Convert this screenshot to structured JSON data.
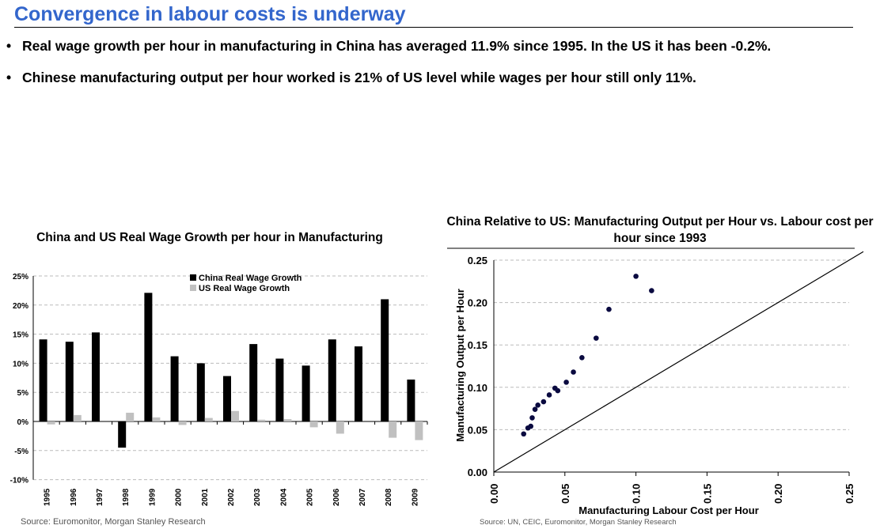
{
  "title": "Convergence in labour costs is underway",
  "bullets": [
    "Real wage growth per hour in manufacturing in China has averaged 11.9% since 1995. In the US it has been -0.2%.",
    "Chinese manufacturing output per hour worked is 21% of US level while wages per hour still only 11%."
  ],
  "colors": {
    "title": "#3366cc",
    "china": "#000000",
    "us": "#c0c0c0",
    "dots": "#0a0a40"
  },
  "chart_data": [
    {
      "type": "bar",
      "title": "China and US Real Wage Growth per hour in Manufacturing",
      "categories": [
        "1995",
        "1996",
        "1997",
        "1998",
        "1999",
        "2000",
        "2001",
        "2002",
        "2003",
        "2004",
        "2005",
        "2006",
        "2007",
        "2008",
        "2009"
      ],
      "series": [
        {
          "name": "China Real Wage Growth",
          "values": [
            14.1,
            13.7,
            15.3,
            -4.5,
            22.1,
            11.2,
            10.0,
            7.8,
            13.3,
            10.8,
            9.6,
            14.1,
            12.9,
            21.0,
            7.2
          ]
        },
        {
          "name": "US Real Wage Growth",
          "values": [
            -0.5,
            1.1,
            0,
            1.5,
            0.7,
            -0.6,
            0.6,
            1.8,
            0.3,
            0.4,
            -1.0,
            -2.1,
            0,
            -2.8,
            -3.2
          ]
        }
      ],
      "yticks": [
        "25%",
        "20%",
        "15%",
        "10%",
        "5%",
        "0%",
        "-5%",
        "-10%"
      ],
      "ylim": [
        -10,
        25
      ],
      "legend": "top-center",
      "grid": true,
      "source": "Source: Euromonitor, Morgan Stanley Research"
    },
    {
      "type": "scatter",
      "title": "China Relative to US: Manufacturing Output per Hour vs. Labour cost per hour  since 1993",
      "xlabel": "Manufacturing Labour Cost per Hour",
      "ylabel": "Manufacturing Output per Hour",
      "xlim": [
        0,
        0.25
      ],
      "ylim": [
        0,
        0.25
      ],
      "xticks": [
        "0.00",
        "0.05",
        "0.10",
        "0.15",
        "0.20",
        "0.25"
      ],
      "yticks": [
        "0.25",
        "0.20",
        "0.15",
        "0.10",
        "0.05",
        "0.00"
      ],
      "points": [
        [
          0.021,
          0.045
        ],
        [
          0.024,
          0.052
        ],
        [
          0.026,
          0.054
        ],
        [
          0.027,
          0.064
        ],
        [
          0.029,
          0.074
        ],
        [
          0.031,
          0.079
        ],
        [
          0.035,
          0.083
        ],
        [
          0.039,
          0.091
        ],
        [
          0.043,
          0.099
        ],
        [
          0.045,
          0.096
        ],
        [
          0.051,
          0.106
        ],
        [
          0.056,
          0.118
        ],
        [
          0.062,
          0.135
        ],
        [
          0.072,
          0.158
        ],
        [
          0.081,
          0.192
        ],
        [
          0.1,
          0.231
        ],
        [
          0.111,
          0.214
        ]
      ],
      "reference_line": "y = x",
      "source": "Source:  UN, CEIC, Euromonitor, Morgan Stanley Research"
    }
  ]
}
